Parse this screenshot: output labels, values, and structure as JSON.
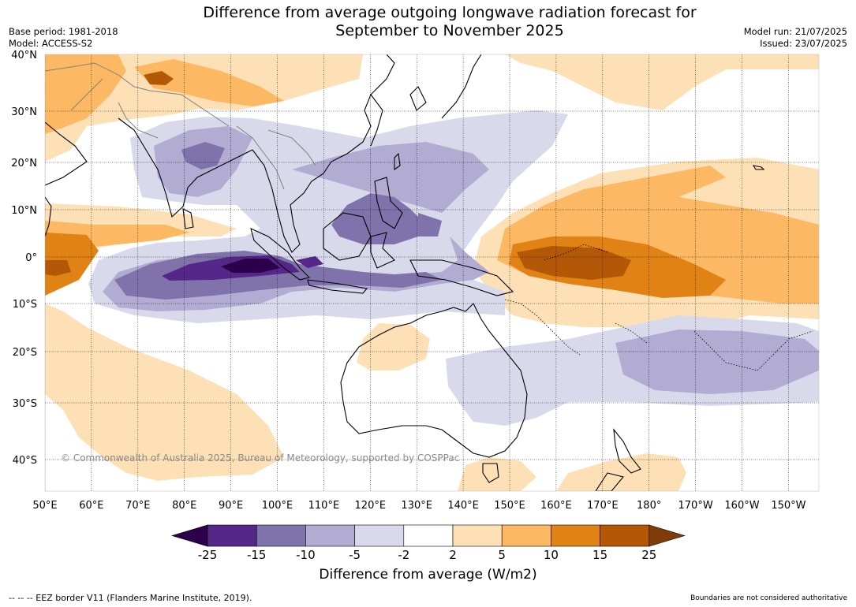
{
  "title_line1": "Difference from average outgoing longwave radiation forecast for",
  "title_line2": "September to November 2025",
  "base_period": "Base period: 1981-2018",
  "model": "Model: ACCESS-S2",
  "model_run": "Model run: 21/07/2025",
  "issued": "Issued: 23/07/2025",
  "copyright": "© Commonwealth of Australia 2025, Bureau of Meteorology, supported by COSPPac",
  "colorbar_title": "Difference from average (W/m2)",
  "footer_left": "--  --  -- EEZ border V11 (Flanders Marine Institute, 2019).",
  "footer_right": "Boundaries are not considered authoritative",
  "lat_ticks": [
    "40°N",
    "30°N",
    "20°N",
    "10°N",
    "0°",
    "10°S",
    "20°S",
    "30°S",
    "40°S"
  ],
  "lon_ticks": [
    "50°E",
    "60°E",
    "70°E",
    "80°E",
    "90°E",
    "100°E",
    "110°E",
    "120°E",
    "130°E",
    "140°E",
    "150°E",
    "160°E",
    "170°E",
    "180°",
    "170°W",
    "160°W",
    "150°W"
  ],
  "colorbar": {
    "labels": [
      "-25",
      "-15",
      "-10",
      "-5",
      "-2",
      "2",
      "5",
      "10",
      "15",
      "25"
    ],
    "colors": [
      "#2d004b",
      "#542788",
      "#8073ac",
      "#b2abd2",
      "#d8daeb",
      "#ffffff",
      "#fee0b6",
      "#fdb863",
      "#e08214",
      "#b35806",
      "#7f3b08"
    ]
  }
}
